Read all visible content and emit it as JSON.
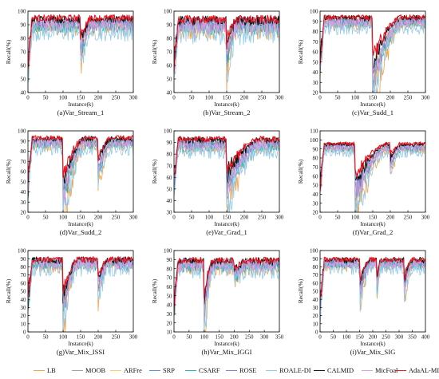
{
  "charts": [
    {
      "caption": "(a)Var_Stream_1",
      "xlabel": "Instance(k)",
      "ylabel": "Recall(%)",
      "ylim": [
        40,
        100
      ],
      "yticks": [
        40,
        50,
        60,
        70,
        80,
        90,
        100
      ],
      "xlim": [
        0,
        300
      ],
      "xticks": [
        0,
        50,
        100,
        150,
        200,
        250,
        300
      ],
      "base": 94,
      "noise": 4,
      "floor": 90,
      "drops": [
        {
          "x": 150,
          "depth": 22,
          "recover": 30
        }
      ]
    },
    {
      "caption": "(b)Var_Stream_2",
      "xlabel": "Instance(k)",
      "ylabel": "Recall(%)",
      "ylim": [
        40,
        100
      ],
      "yticks": [
        40,
        50,
        60,
        70,
        80,
        90,
        100
      ],
      "xlim": [
        0,
        300
      ],
      "xticks": [
        0,
        50,
        100,
        150,
        200,
        250,
        300
      ],
      "base": 93,
      "noise": 5,
      "floor": 88,
      "drops": [
        {
          "x": 150,
          "depth": 25,
          "recover": 30
        }
      ]
    },
    {
      "caption": "(c)Var_Sudd_1",
      "xlabel": "Instance(k)",
      "ylabel": "Recall(%)",
      "ylim": [
        20,
        100
      ],
      "yticks": [
        20,
        30,
        40,
        50,
        60,
        70,
        80,
        90,
        100
      ],
      "xlim": [
        0,
        300
      ],
      "xticks": [
        0,
        50,
        100,
        150,
        200,
        250,
        300
      ],
      "base": 93,
      "noise": 4,
      "floor": 88,
      "drops": [
        {
          "x": 150,
          "depth": 60,
          "recover": 80
        }
      ]
    },
    {
      "caption": "(d)Var_Sudd_2",
      "xlabel": "Instance(k)",
      "ylabel": "Recall(%)",
      "ylim": [
        20,
        100
      ],
      "yticks": [
        20,
        30,
        40,
        50,
        60,
        70,
        80,
        90,
        100
      ],
      "xlim": [
        0,
        300
      ],
      "xticks": [
        0,
        50,
        100,
        150,
        200,
        250,
        300
      ],
      "base": 92,
      "noise": 4,
      "floor": 86,
      "drops": [
        {
          "x": 100,
          "depth": 55,
          "recover": 60
        },
        {
          "x": 200,
          "depth": 30,
          "recover": 35
        }
      ]
    },
    {
      "caption": "(e)Var_Grad_1",
      "xlabel": "Instance(k)",
      "ylabel": "Recall(%)",
      "ylim": [
        30,
        100
      ],
      "yticks": [
        30,
        40,
        50,
        60,
        70,
        80,
        90,
        100
      ],
      "xlim": [
        0,
        300
      ],
      "xticks": [
        0,
        50,
        100,
        150,
        200,
        250,
        300
      ],
      "base": 92,
      "noise": 4,
      "floor": 85,
      "drops": [
        {
          "x": 150,
          "depth": 40,
          "recover": 90
        }
      ]
    },
    {
      "caption": "(f)Var_Grad_2",
      "xlabel": "Instance(k)",
      "ylabel": "Recall(%)",
      "ylim": [
        20,
        110
      ],
      "yticks": [
        20,
        30,
        40,
        50,
        60,
        70,
        80,
        90,
        100,
        110
      ],
      "xlim": [
        0,
        300
      ],
      "xticks": [
        0,
        50,
        100,
        150,
        200,
        250,
        300
      ],
      "base": 95,
      "noise": 3,
      "floor": 90,
      "drops": [
        {
          "x": 100,
          "depth": 55,
          "recover": 90
        },
        {
          "x": 200,
          "depth": 20,
          "recover": 30
        }
      ]
    },
    {
      "caption": "(g)Var_Mix_ISSI",
      "xlabel": "Instance(k)",
      "ylabel": "Recall(%)",
      "ylim": [
        0,
        100
      ],
      "yticks": [
        0,
        10,
        20,
        30,
        40,
        50,
        60,
        70,
        80,
        90,
        100
      ],
      "xlim": [
        0,
        300
      ],
      "xticks": [
        0,
        50,
        100,
        150,
        200,
        250,
        300
      ],
      "base": 88,
      "noise": 6,
      "floor": 78,
      "drops": [
        {
          "x": 100,
          "depth": 60,
          "recover": 40
        },
        {
          "x": 200,
          "depth": 30,
          "recover": 30
        }
      ]
    },
    {
      "caption": "(h)Var_Mix_IGGI",
      "xlabel": "Instance(k)",
      "ylabel": "Recall(%)",
      "ylim": [
        10,
        100
      ],
      "yticks": [
        10,
        20,
        30,
        40,
        50,
        60,
        70,
        80,
        90,
        100
      ],
      "xlim": [
        0,
        350
      ],
      "xticks": [
        0,
        50,
        100,
        150,
        200,
        250,
        300,
        350
      ],
      "base": 88,
      "noise": 6,
      "floor": 80,
      "drops": [
        {
          "x": 100,
          "depth": 55,
          "recover": 30
        },
        {
          "x": 200,
          "depth": 15,
          "recover": 40
        }
      ]
    },
    {
      "caption": "(i)Var_Mix_SIG",
      "xlabel": "Instance(k)",
      "ylabel": "Recall(%)",
      "ylim": [
        0,
        100
      ],
      "yticks": [
        0,
        10,
        20,
        30,
        40,
        50,
        60,
        70,
        80,
        90,
        100
      ],
      "xlim": [
        0,
        400
      ],
      "xticks": [
        0,
        50,
        100,
        150,
        200,
        250,
        300,
        350,
        400
      ],
      "base": 88,
      "noise": 5,
      "floor": 82,
      "drops": [
        {
          "x": 150,
          "depth": 40,
          "recover": 40
        },
        {
          "x": 215,
          "depth": 35,
          "recover": 15
        },
        {
          "x": 320,
          "depth": 30,
          "recover": 30
        }
      ]
    }
  ],
  "series": [
    {
      "name": "LB",
      "color": "#f5a142",
      "offset": -6,
      "spread": 1.6,
      "dropMul": 1.5
    },
    {
      "name": "MOOB",
      "color": "#a0a0a0",
      "offset": -4,
      "spread": 1.2,
      "dropMul": 1.1
    },
    {
      "name": "ARFre",
      "color": "#f0d060",
      "offset": -3,
      "spread": 1.1,
      "dropMul": 1.0
    },
    {
      "name": "SRP",
      "color": "#5b8fd4",
      "offset": -2,
      "spread": 1.0,
      "dropMul": 0.9
    },
    {
      "name": "CSARF",
      "color": "#2bb0b0",
      "offset": -5,
      "spread": 1.3,
      "dropMul": 1.0
    },
    {
      "name": "ROSE",
      "color": "#8c7ac8",
      "offset": -3,
      "spread": 1.1,
      "dropMul": 1.0
    },
    {
      "name": "ROALE-DI",
      "color": "#8fc9ec",
      "offset": -9,
      "spread": 1.8,
      "dropMul": 1.3
    },
    {
      "name": "CALMID",
      "color": "#111111",
      "offset": 0,
      "spread": 0.7,
      "dropMul": 0.8
    },
    {
      "name": "MicFoal",
      "color": "#d99ee0",
      "offset": -4,
      "spread": 1.3,
      "dropMul": 1.0
    },
    {
      "name": "AdaAL-MID",
      "color": "#e8141e",
      "offset": 1,
      "spread": 0.6,
      "dropMul": 0.7
    }
  ]
}
